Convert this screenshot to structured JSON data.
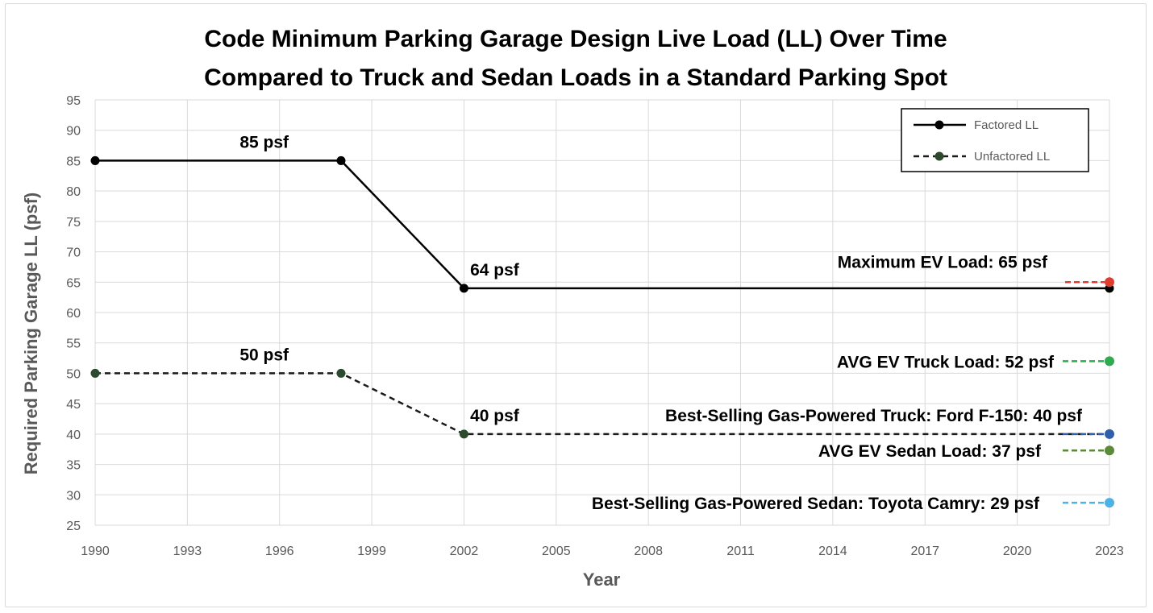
{
  "chart_data": {
    "type": "line",
    "title_lines": [
      "Code Minimum Parking Garage Design Live Load (LL) Over Time",
      "Compared to Truck and Sedan Loads in a Standard Parking Spot"
    ],
    "xlabel": "Year",
    "ylabel": "Required Parking Garage LL (psf)",
    "xlim": [
      1990,
      2023
    ],
    "ylim": [
      25,
      95
    ],
    "x_ticks": [
      1990,
      1993,
      1996,
      1999,
      2002,
      2005,
      2008,
      2011,
      2014,
      2017,
      2020,
      2023
    ],
    "y_ticks": [
      25,
      30,
      35,
      40,
      45,
      50,
      55,
      60,
      65,
      70,
      75,
      80,
      85,
      90,
      95
    ],
    "grid": true,
    "legend_position": "top-right",
    "series": [
      {
        "name": "Factored LL",
        "style": "solid",
        "color": "#000000",
        "points": [
          [
            1990,
            85
          ],
          [
            1998,
            85
          ],
          [
            2002,
            64
          ],
          [
            2023,
            64
          ]
        ]
      },
      {
        "name": "Unfactored LL",
        "style": "dashed",
        "color": "#1f3d1f",
        "points": [
          [
            1990,
            50
          ],
          [
            1998,
            50
          ],
          [
            2002,
            40
          ],
          [
            2023,
            40
          ]
        ]
      }
    ],
    "point_labels": [
      {
        "text": "85 psf",
        "x": 1995.5,
        "y": 85
      },
      {
        "text": "64 psf",
        "x": 2002.2,
        "y": 64
      },
      {
        "text": "50 psf",
        "x": 1995.5,
        "y": 50
      },
      {
        "text": "40 psf",
        "x": 2002.2,
        "y": 40
      }
    ],
    "reference_loads": [
      {
        "label": "Maximum EV Load: 65 psf",
        "value": 65,
        "color": "#e03c31"
      },
      {
        "label": "AVG EV Truck Load: 52 psf",
        "value": 52,
        "color": "#2eaa4f"
      },
      {
        "label": "Best-Selling Gas-Powered Truck: Ford F-150: 40 psf",
        "value": 40,
        "color": "#2f5fa8"
      },
      {
        "label": "AVG EV Sedan Load: 37 psf",
        "value": 37.3,
        "color": "#5a8a3a"
      },
      {
        "label": "Best-Selling Gas-Powered Sedan: Toyota Camry: 29 psf",
        "value": 28.7,
        "color": "#4db3e6"
      }
    ]
  }
}
